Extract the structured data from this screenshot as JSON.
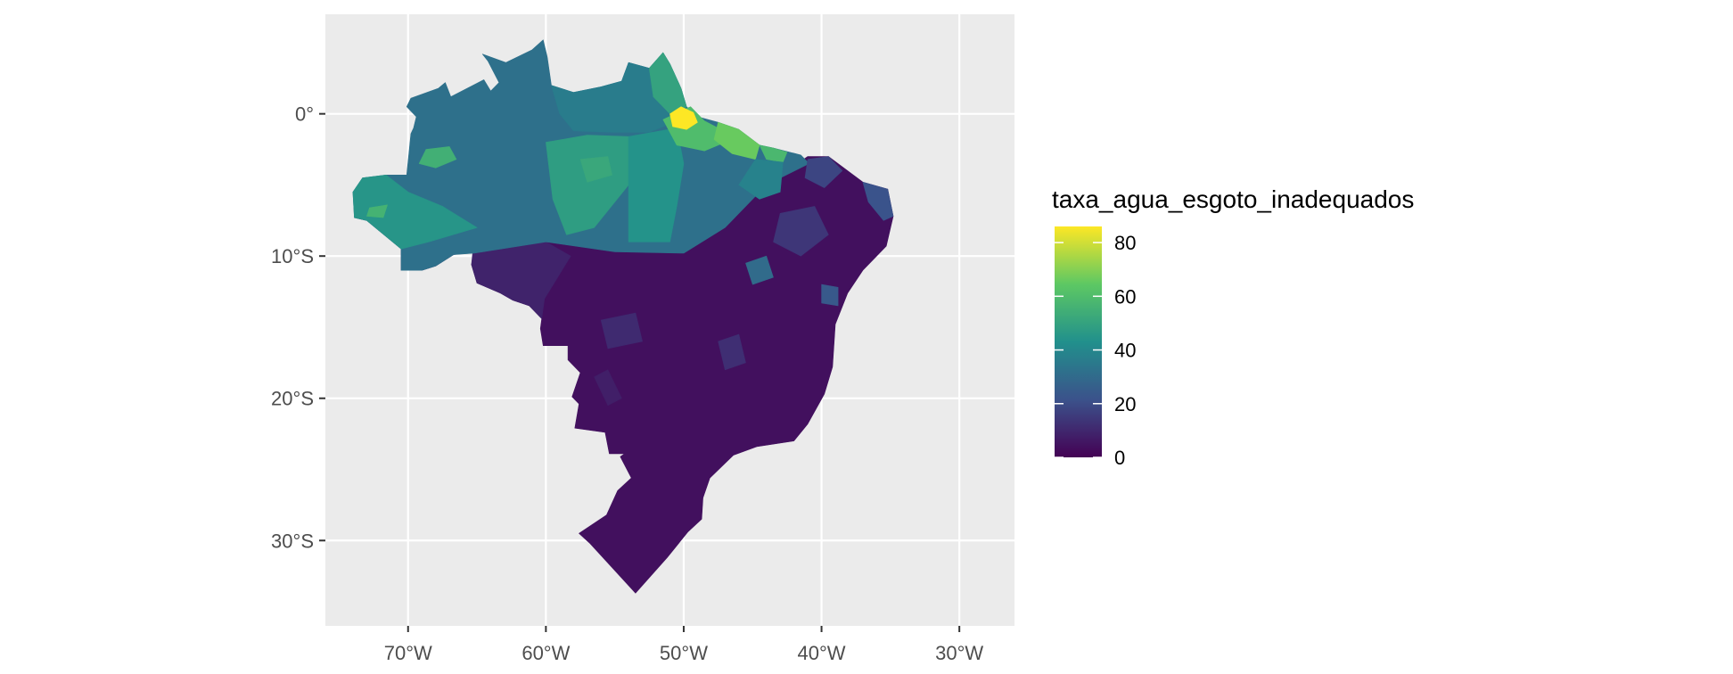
{
  "map": {
    "x_axis": {
      "ticks": [
        {
          "value": -70,
          "label": "70°W"
        },
        {
          "value": -60,
          "label": "60°W"
        },
        {
          "value": -50,
          "label": "50°W"
        },
        {
          "value": -40,
          "label": "40°W"
        },
        {
          "value": -30,
          "label": "30°W"
        }
      ],
      "range": [
        -76,
        -26
      ]
    },
    "y_axis": {
      "ticks": [
        {
          "value": 0,
          "label": "0°"
        },
        {
          "value": -10,
          "label": "10°S"
        },
        {
          "value": -20,
          "label": "20°S"
        },
        {
          "value": -30,
          "label": "30°S"
        }
      ],
      "range": [
        -36,
        7
      ]
    },
    "panel_background": "#ebebeb",
    "grid_color": "#ffffff",
    "grid": true
  },
  "legend": {
    "title": "taxa_agua_esgoto_inadequados",
    "placement": "right",
    "ticks": [
      {
        "value": 0,
        "label": "0"
      },
      {
        "value": 20,
        "label": "20"
      },
      {
        "value": 40,
        "label": "40"
      },
      {
        "value": 60,
        "label": "60"
      },
      {
        "value": 80,
        "label": "80"
      }
    ],
    "range": [
      0,
      86
    ],
    "colormap": "viridis",
    "colors": [
      "#440154",
      "#3b528b",
      "#21908c",
      "#5dc863",
      "#fde725"
    ]
  },
  "regions": [
    {
      "value": 4,
      "poly": [
        [
          -53.5,
          -33.7
        ],
        [
          -56.8,
          -30.2
        ],
        [
          -57.6,
          -29.5
        ],
        [
          -55.6,
          -28.2
        ],
        [
          -54.8,
          -26.5
        ],
        [
          -53.8,
          -25.6
        ],
        [
          -54.6,
          -24.1
        ],
        [
          -54.3,
          -23.9
        ],
        [
          -55.4,
          -23.9
        ],
        [
          -55.7,
          -22.4
        ],
        [
          -57.9,
          -22.1
        ],
        [
          -57.6,
          -20.4
        ],
        [
          -58.1,
          -19.9
        ],
        [
          -57.5,
          -18.2
        ],
        [
          -58.4,
          -17.3
        ],
        [
          -58.4,
          -16.3
        ],
        [
          -60.2,
          -16.3
        ],
        [
          -60.4,
          -15.1
        ],
        [
          -60.3,
          -14.4
        ],
        [
          -61.2,
          -13.5
        ],
        [
          -62.4,
          -13.1
        ],
        [
          -63.3,
          -12.6
        ],
        [
          -65.0,
          -11.9
        ],
        [
          -65.4,
          -10.6
        ],
        [
          -65.2,
          -9.8
        ],
        [
          -60.0,
          -9.0
        ],
        [
          -55.0,
          -9.7
        ],
        [
          -50.0,
          -9.8
        ],
        [
          -47.0,
          -8.0
        ],
        [
          -44.0,
          -5.0
        ],
        [
          -41.0,
          -3.0
        ],
        [
          -39.5,
          -3.0
        ],
        [
          -37.0,
          -4.8
        ],
        [
          -35.2,
          -5.3
        ],
        [
          -34.8,
          -7.2
        ],
        [
          -35.3,
          -9.3
        ],
        [
          -37.0,
          -11.0
        ],
        [
          -38.1,
          -12.6
        ],
        [
          -39.0,
          -14.8
        ],
        [
          -39.2,
          -17.8
        ],
        [
          -39.8,
          -19.7
        ],
        [
          -41.0,
          -21.8
        ],
        [
          -42.0,
          -23.0
        ],
        [
          -44.7,
          -23.4
        ],
        [
          -46.4,
          -24.0
        ],
        [
          -48.1,
          -25.6
        ],
        [
          -48.6,
          -27.0
        ],
        [
          -48.7,
          -28.5
        ],
        [
          -49.7,
          -29.4
        ],
        [
          -51.2,
          -31.2
        ],
        [
          -52.4,
          -32.5
        ]
      ]
    },
    {
      "value": 9,
      "poly": [
        [
          -73.9,
          -7.3
        ],
        [
          -73.0,
          -7.5
        ],
        [
          -70.5,
          -9.5
        ],
        [
          -70.5,
          -11.0
        ],
        [
          -69.0,
          -11.0
        ],
        [
          -68.0,
          -10.7
        ],
        [
          -66.7,
          -9.9
        ],
        [
          -65.3,
          -9.7
        ],
        [
          -65.4,
          -10.6
        ],
        [
          -65.0,
          -11.9
        ],
        [
          -63.3,
          -12.6
        ],
        [
          -62.4,
          -13.1
        ],
        [
          -61.2,
          -13.5
        ],
        [
          -60.3,
          -14.4
        ],
        [
          -60.1,
          -13.0
        ],
        [
          -58.2,
          -10.0
        ],
        [
          -60.0,
          -9.0
        ]
      ]
    },
    {
      "value": 32,
      "poly": [
        [
          -73.9,
          -7.3
        ],
        [
          -74.0,
          -5.5
        ],
        [
          -73.3,
          -4.5
        ],
        [
          -71.6,
          -4.3
        ],
        [
          -70.1,
          -4.3
        ],
        [
          -69.8,
          -1.4
        ],
        [
          -69.6,
          -1.0
        ],
        [
          -69.4,
          -0.2
        ],
        [
          -70.1,
          0.5
        ],
        [
          -69.8,
          1.1
        ],
        [
          -67.8,
          1.8
        ],
        [
          -67.3,
          2.2
        ],
        [
          -66.9,
          1.2
        ],
        [
          -64.5,
          2.4
        ],
        [
          -64.0,
          1.6
        ],
        [
          -63.4,
          2.2
        ],
        [
          -64.2,
          3.7
        ],
        [
          -64.6,
          4.2
        ],
        [
          -62.9,
          3.6
        ],
        [
          -61.0,
          4.5
        ],
        [
          -60.2,
          5.2
        ],
        [
          -59.9,
          4.0
        ],
        [
          -59.6,
          2.0
        ],
        [
          -58.0,
          1.5
        ],
        [
          -56.0,
          1.9
        ],
        [
          -54.5,
          2.3
        ],
        [
          -54.0,
          3.6
        ],
        [
          -52.5,
          3.2
        ],
        [
          -51.5,
          4.3
        ],
        [
          -51.0,
          3.5
        ],
        [
          -50.2,
          1.8
        ],
        [
          -49.8,
          0.5
        ],
        [
          -49.0,
          -0.2
        ],
        [
          -47.5,
          -0.6
        ],
        [
          -46.0,
          -1.1
        ],
        [
          -44.5,
          -2.2
        ],
        [
          -43.5,
          -2.4
        ],
        [
          -41.5,
          -2.9
        ],
        [
          -40.9,
          -3.5
        ],
        [
          -44.0,
          -5.0
        ],
        [
          -47.0,
          -8.0
        ],
        [
          -50.0,
          -9.8
        ],
        [
          -55.0,
          -9.7
        ],
        [
          -60.0,
          -9.0
        ],
        [
          -65.2,
          -9.8
        ],
        [
          -66.7,
          -9.9
        ],
        [
          -68.0,
          -10.7
        ],
        [
          -69.0,
          -11.0
        ],
        [
          -70.5,
          -11.0
        ],
        [
          -70.5,
          -9.5
        ],
        [
          -73.0,
          -7.5
        ]
      ]
    },
    {
      "value": 45,
      "poly": [
        [
          -73.9,
          -7.3
        ],
        [
          -74.0,
          -5.5
        ],
        [
          -73.3,
          -4.5
        ],
        [
          -71.6,
          -4.3
        ],
        [
          -70.0,
          -5.5
        ],
        [
          -67.5,
          -6.5
        ],
        [
          -65.0,
          -8.0
        ],
        [
          -68.5,
          -9.0
        ],
        [
          -70.5,
          -9.5
        ],
        [
          -73.0,
          -7.5
        ]
      ]
    },
    {
      "value": 48,
      "poly": [
        [
          -60.0,
          -2.0
        ],
        [
          -57.0,
          -1.5
        ],
        [
          -54.0,
          -1.6
        ],
        [
          -54.0,
          -5.0
        ],
        [
          -56.5,
          -8.0
        ],
        [
          -58.5,
          -8.5
        ],
        [
          -59.5,
          -6.0
        ]
      ]
    },
    {
      "value": 44,
      "poly": [
        [
          -54.0,
          -1.6
        ],
        [
          -50.5,
          -1.0
        ],
        [
          -50.0,
          -3.5
        ],
        [
          -50.5,
          -6.5
        ],
        [
          -51.0,
          -9.0
        ],
        [
          -54.0,
          -9.0
        ],
        [
          -54.0,
          -5.0
        ]
      ]
    },
    {
      "value": 36,
      "poly": [
        [
          -59.6,
          2.0
        ],
        [
          -58.0,
          1.5
        ],
        [
          -56.0,
          1.9
        ],
        [
          -54.5,
          2.3
        ],
        [
          -54.0,
          3.6
        ],
        [
          -52.5,
          3.2
        ],
        [
          -51.5,
          4.3
        ],
        [
          -51.0,
          3.5
        ],
        [
          -50.2,
          1.8
        ],
        [
          -49.8,
          0.5
        ],
        [
          -50.5,
          -0.5
        ],
        [
          -52.5,
          -1.3
        ],
        [
          -55.0,
          -1.3
        ],
        [
          -58.0,
          -1.2
        ],
        [
          -59.0,
          0.0
        ]
      ]
    },
    {
      "value": 50,
      "poly": [
        [
          -52.5,
          3.2
        ],
        [
          -51.5,
          4.3
        ],
        [
          -51.0,
          3.5
        ],
        [
          -50.2,
          1.8
        ],
        [
          -49.8,
          0.5
        ],
        [
          -51.0,
          0.0
        ],
        [
          -52.2,
          1.2
        ]
      ]
    },
    {
      "value": 55,
      "poly": [
        [
          -68.7,
          -2.5
        ],
        [
          -67.0,
          -2.3
        ],
        [
          -66.5,
          -3.2
        ],
        [
          -68.0,
          -3.8
        ],
        [
          -69.2,
          -3.5
        ]
      ]
    },
    {
      "value": 52,
      "poly": [
        [
          -57.5,
          -3.2
        ],
        [
          -55.5,
          -3.0
        ],
        [
          -55.2,
          -4.3
        ],
        [
          -57.0,
          -4.8
        ]
      ]
    },
    {
      "value": 56,
      "poly": [
        [
          -72.8,
          -6.6
        ],
        [
          -71.5,
          -6.4
        ],
        [
          -71.8,
          -7.3
        ],
        [
          -73.0,
          -7.2
        ]
      ]
    },
    {
      "value": 60,
      "poly": [
        [
          -51.5,
          -0.4
        ],
        [
          -49.5,
          0.5
        ],
        [
          -48.5,
          -0.5
        ],
        [
          -47.5,
          -1.0
        ],
        [
          -47.0,
          -2.0
        ],
        [
          -48.5,
          -2.6
        ],
        [
          -50.5,
          -2.2
        ]
      ]
    },
    {
      "value": 86,
      "poly": [
        [
          -51.0,
          0.0
        ],
        [
          -50.2,
          0.5
        ],
        [
          -49.3,
          0.1
        ],
        [
          -49.0,
          -0.6
        ],
        [
          -49.8,
          -1.1
        ],
        [
          -50.8,
          -0.9
        ]
      ]
    },
    {
      "value": 66,
      "poly": [
        [
          -47.5,
          -0.6
        ],
        [
          -46.0,
          -1.1
        ],
        [
          -44.5,
          -2.2
        ],
        [
          -44.8,
          -3.2
        ],
        [
          -46.5,
          -2.8
        ],
        [
          -47.8,
          -1.8
        ]
      ]
    },
    {
      "value": 58,
      "poly": [
        [
          -44.5,
          -2.2
        ],
        [
          -43.5,
          -2.4
        ],
        [
          -42.5,
          -2.7
        ],
        [
          -42.8,
          -3.4
        ],
        [
          -44.0,
          -3.2
        ]
      ]
    },
    {
      "value": 38,
      "poly": [
        [
          -44.8,
          -3.2
        ],
        [
          -42.8,
          -3.4
        ],
        [
          -43.0,
          -5.5
        ],
        [
          -44.5,
          -6.0
        ],
        [
          -46.0,
          -5.0
        ]
      ]
    },
    {
      "value": 18,
      "poly": [
        [
          -41.0,
          -3.2
        ],
        [
          -39.5,
          -3.0
        ],
        [
          -38.5,
          -4.0
        ],
        [
          -39.8,
          -5.2
        ],
        [
          -41.2,
          -4.5
        ]
      ]
    },
    {
      "value": 22,
      "poly": [
        [
          -37.0,
          -4.8
        ],
        [
          -35.2,
          -5.3
        ],
        [
          -34.8,
          -7.2
        ],
        [
          -35.5,
          -7.5
        ],
        [
          -36.6,
          -6.2
        ]
      ]
    },
    {
      "value": 14,
      "poly": [
        [
          -43.0,
          -7.0
        ],
        [
          -40.5,
          -6.5
        ],
        [
          -39.5,
          -8.5
        ],
        [
          -41.5,
          -10.0
        ],
        [
          -43.5,
          -9.0
        ]
      ]
    },
    {
      "value": 30,
      "poly": [
        [
          -45.5,
          -10.5
        ],
        [
          -44.0,
          -10.0
        ],
        [
          -43.5,
          -11.5
        ],
        [
          -45.0,
          -12.0
        ]
      ]
    },
    {
      "value": 24,
      "poly": [
        [
          -40.0,
          -12.0
        ],
        [
          -38.8,
          -12.2
        ],
        [
          -38.8,
          -13.5
        ],
        [
          -40.0,
          -13.3
        ]
      ]
    },
    {
      "value": 12,
      "poly": [
        [
          -47.5,
          -16.0
        ],
        [
          -46.0,
          -15.5
        ],
        [
          -45.5,
          -17.5
        ],
        [
          -47.0,
          -18.0
        ]
      ]
    },
    {
      "value": 11,
      "poly": [
        [
          -56.0,
          -14.5
        ],
        [
          -53.5,
          -14.0
        ],
        [
          -53.0,
          -16.0
        ],
        [
          -55.5,
          -16.5
        ]
      ]
    },
    {
      "value": 8,
      "poly": [
        [
          -56.5,
          -18.5
        ],
        [
          -55.5,
          -18.0
        ],
        [
          -54.5,
          -20.0
        ],
        [
          -55.5,
          -20.5
        ]
      ]
    }
  ]
}
